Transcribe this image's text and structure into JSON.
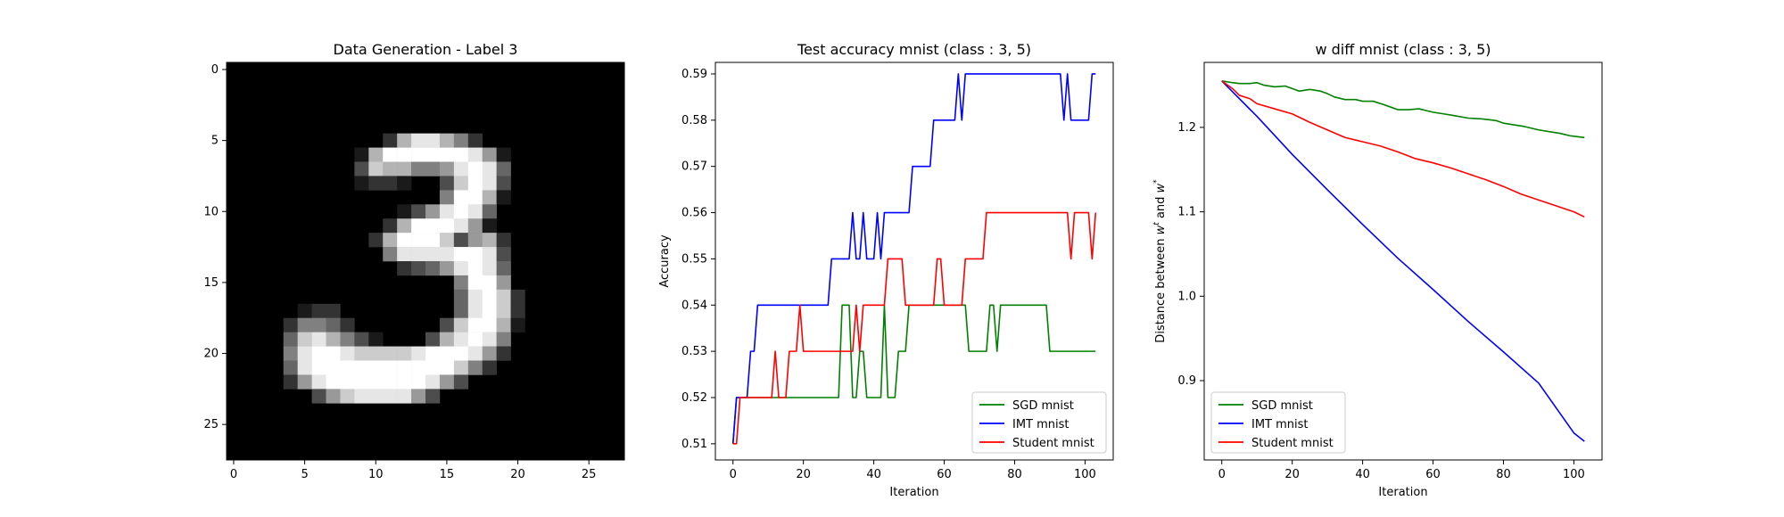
{
  "image_panel": {
    "title": "Data Generation - Label 3",
    "rows": 28,
    "cols": 28,
    "xticks": [
      0,
      5,
      10,
      15,
      20,
      25
    ],
    "yticks": [
      0,
      5,
      10,
      15,
      20,
      25
    ],
    "pixels": [
      "",
      "",
      "",
      "",
      "",
      "11:2,12:7,13:9,14:9,15:7,16:5,17:2",
      "9:1,10:7,11:10,12:10,13:10,14:10,15:10,16:10,17:9,18:6,19:1",
      "9:3,10:8,11:7,12:7,13:5,14:5,15:6,16:9,17:10,18:9,19:4",
      "9:1,10:2,11:2,12:1,15:3,16:8,17:10,18:9,19:3",
      "15:5,16:10,17:10,18:7,19:1",
      "12:1,13:3,14:6,15:9,16:10,17:9,18:4",
      "11:2,12:7,13:10,14:10,15:10,16:9,17:6,18:1",
      "10:2,11:7,12:10,13:10,14:10,15:8,16:3,17:6,18:7,19:2",
      "11:5,12:9,13:9,14:9,15:9,16:10,17:10,18:9,19:3",
      "12:2,13:3,14:4,15:6,16:9,17:10,18:9,19:4",
      "16:5,17:10,18:10,19:6",
      "16:4,17:9,18:10,19:8,20:2",
      "5:1,6:2,7:2,16:4,17:9,18:10,19:8,20:2",
      "4:2,5:5,6:5,7:4,8:2,15:3,16:8,17:10,18:10,19:7,20:1",
      "4:4,5:8,6:9,7:7,8:5,9:3,10:1,14:3,15:7,16:9,17:10,18:9,19:5",
      "4:5,5:9,6:10,7:10,8:9,9:8,10:8,11:8,12:8,13:9,14:10,15:10,16:10,17:9,18:6,19:2",
      "4:4,5:9,6:10,7:10,8:10,9:10,10:10,11:10,12:10,13:10,14:10,15:10,16:8,17:5,18:2",
      "4:2,5:6,6:9,7:10,8:10,9:10,10:10,11:10,12:10,13:10,14:9,15:6,16:3",
      "6:3,7:6,8:8,9:9,10:9,11:9,12:9,13:6,14:3",
      "",
      "",
      "",
      ""
    ]
  },
  "chart_data": [
    {
      "type": "line",
      "title": "Test accuracy mnist (class : 3, 5)",
      "xlabel": "Iteration",
      "ylabel": "Accuracy",
      "xlim": [
        -5,
        108
      ],
      "ylim": [
        0.5065,
        0.5925
      ],
      "xticks": [
        0,
        20,
        40,
        60,
        80,
        100
      ],
      "yticks": [
        0.51,
        0.52,
        0.53,
        0.54,
        0.55,
        0.56,
        0.57,
        0.58,
        0.59
      ],
      "ytick_labels": [
        "0.51",
        "0.52",
        "0.53",
        "0.54",
        "0.55",
        "0.56",
        "0.57",
        "0.58",
        "0.59"
      ],
      "legend_position": "lower-right",
      "series": [
        {
          "name": "SGD mnist",
          "color": "#008000",
          "points": [
            [
              0,
              0.51
            ],
            [
              1,
              0.52
            ],
            [
              30,
              0.52
            ],
            [
              31,
              0.54
            ],
            [
              33,
              0.54
            ],
            [
              34,
              0.52
            ],
            [
              35,
              0.52
            ],
            [
              36,
              0.53
            ],
            [
              37,
              0.53
            ],
            [
              38,
              0.52
            ],
            [
              42,
              0.52
            ],
            [
              43,
              0.54
            ],
            [
              44,
              0.52
            ],
            [
              46,
              0.52
            ],
            [
              47,
              0.53
            ],
            [
              49,
              0.53
            ],
            [
              50,
              0.54
            ],
            [
              52,
              0.54
            ],
            [
              53,
              0.54
            ],
            [
              66,
              0.54
            ],
            [
              67,
              0.53
            ],
            [
              72,
              0.53
            ],
            [
              73,
              0.54
            ],
            [
              74,
              0.54
            ],
            [
              75,
              0.53
            ],
            [
              76,
              0.54
            ],
            [
              89,
              0.54
            ],
            [
              90,
              0.53
            ],
            [
              103,
              0.53
            ]
          ]
        },
        {
          "name": "IMT mnist",
          "color": "#0000ff",
          "points": [
            [
              0,
              0.51
            ],
            [
              1,
              0.52
            ],
            [
              4,
              0.52
            ],
            [
              5,
              0.53
            ],
            [
              6,
              0.53
            ],
            [
              7,
              0.54
            ],
            [
              27,
              0.54
            ],
            [
              28,
              0.55
            ],
            [
              33,
              0.55
            ],
            [
              34,
              0.56
            ],
            [
              35,
              0.55
            ],
            [
              36,
              0.55
            ],
            [
              37,
              0.56
            ],
            [
              38,
              0.55
            ],
            [
              40,
              0.55
            ],
            [
              41,
              0.56
            ],
            [
              42,
              0.55
            ],
            [
              43,
              0.56
            ],
            [
              50,
              0.56
            ],
            [
              51,
              0.57
            ],
            [
              56,
              0.57
            ],
            [
              57,
              0.58
            ],
            [
              63,
              0.58
            ],
            [
              64,
              0.59
            ],
            [
              65,
              0.58
            ],
            [
              66,
              0.59
            ],
            [
              93,
              0.59
            ],
            [
              94,
              0.58
            ],
            [
              95,
              0.59
            ],
            [
              96,
              0.58
            ],
            [
              101,
              0.58
            ],
            [
              102,
              0.59
            ],
            [
              103,
              0.59
            ]
          ]
        },
        {
          "name": "Student mnist",
          "color": "#ff0000",
          "points": [
            [
              0,
              0.51
            ],
            [
              1,
              0.51
            ],
            [
              2,
              0.52
            ],
            [
              11,
              0.52
            ],
            [
              12,
              0.53
            ],
            [
              13,
              0.52
            ],
            [
              15,
              0.52
            ],
            [
              16,
              0.53
            ],
            [
              18,
              0.53
            ],
            [
              19,
              0.54
            ],
            [
              20,
              0.53
            ],
            [
              34,
              0.53
            ],
            [
              35,
              0.54
            ],
            [
              36,
              0.53
            ],
            [
              37,
              0.54
            ],
            [
              43,
              0.54
            ],
            [
              44,
              0.55
            ],
            [
              48,
              0.55
            ],
            [
              49,
              0.54
            ],
            [
              57,
              0.54
            ],
            [
              58,
              0.55
            ],
            [
              59,
              0.55
            ],
            [
              60,
              0.54
            ],
            [
              65,
              0.54
            ],
            [
              66,
              0.55
            ],
            [
              71,
              0.55
            ],
            [
              72,
              0.56
            ],
            [
              95,
              0.56
            ],
            [
              96,
              0.55
            ],
            [
              97,
              0.56
            ],
            [
              101,
              0.56
            ],
            [
              102,
              0.55
            ],
            [
              103,
              0.56
            ]
          ]
        }
      ]
    },
    {
      "type": "line",
      "title": "w diff mnist (class : 3, 5)",
      "xlabel": "Iteration",
      "ylabel": "Distance between w^t and w^*",
      "ylabel_parts": {
        "a": "Distance between ",
        "b": "w",
        "c": "t",
        "d": " and ",
        "e": "w",
        "f": "*"
      },
      "xlim": [
        -5,
        108
      ],
      "ylim": [
        0.806,
        1.277
      ],
      "xticks": [
        0,
        20,
        40,
        60,
        80,
        100
      ],
      "yticks": [
        0.9,
        1.0,
        1.1,
        1.2
      ],
      "ytick_labels": [
        "0.9",
        "1.0",
        "1.1",
        "1.2"
      ],
      "legend_position": "lower-left",
      "series": [
        {
          "name": "SGD mnist",
          "color": "#008000",
          "points": [
            [
              0,
              1.255
            ],
            [
              3,
              1.253
            ],
            [
              5,
              1.252
            ],
            [
              8,
              1.252
            ],
            [
              10,
              1.253
            ],
            [
              12,
              1.25
            ],
            [
              15,
              1.248
            ],
            [
              18,
              1.249
            ],
            [
              20,
              1.246
            ],
            [
              22,
              1.243
            ],
            [
              25,
              1.245
            ],
            [
              28,
              1.243
            ],
            [
              30,
              1.24
            ],
            [
              32,
              1.236
            ],
            [
              35,
              1.233
            ],
            [
              38,
              1.233
            ],
            [
              40,
              1.231
            ],
            [
              43,
              1.231
            ],
            [
              46,
              1.227
            ],
            [
              48,
              1.224
            ],
            [
              50,
              1.221
            ],
            [
              53,
              1.221
            ],
            [
              56,
              1.222
            ],
            [
              58,
              1.22
            ],
            [
              60,
              1.218
            ],
            [
              63,
              1.216
            ],
            [
              66,
              1.214
            ],
            [
              70,
              1.211
            ],
            [
              74,
              1.21
            ],
            [
              78,
              1.208
            ],
            [
              80,
              1.205
            ],
            [
              83,
              1.203
            ],
            [
              86,
              1.201
            ],
            [
              90,
              1.197
            ],
            [
              93,
              1.195
            ],
            [
              96,
              1.193
            ],
            [
              99,
              1.19
            ],
            [
              101,
              1.189
            ],
            [
              103,
              1.188
            ]
          ]
        },
        {
          "name": "IMT mnist",
          "color": "#0000ff",
          "points": [
            [
              0,
              1.255
            ],
            [
              10,
              1.213
            ],
            [
              20,
              1.168
            ],
            [
              30,
              1.126
            ],
            [
              40,
              1.085
            ],
            [
              50,
              1.045
            ],
            [
              60,
              1.008
            ],
            [
              70,
              0.97
            ],
            [
              80,
              0.934
            ],
            [
              90,
              0.897
            ],
            [
              100,
              0.838
            ],
            [
              103,
              0.828
            ]
          ]
        },
        {
          "name": "Student mnist",
          "color": "#ff0000",
          "points": [
            [
              0,
              1.255
            ],
            [
              3,
              1.246
            ],
            [
              5,
              1.238
            ],
            [
              8,
              1.234
            ],
            [
              10,
              1.228
            ],
            [
              15,
              1.222
            ],
            [
              20,
              1.216
            ],
            [
              25,
              1.206
            ],
            [
              30,
              1.197
            ],
            [
              35,
              1.188
            ],
            [
              40,
              1.183
            ],
            [
              45,
              1.178
            ],
            [
              50,
              1.171
            ],
            [
              55,
              1.163
            ],
            [
              60,
              1.158
            ],
            [
              65,
              1.152
            ],
            [
              70,
              1.145
            ],
            [
              75,
              1.138
            ],
            [
              80,
              1.13
            ],
            [
              85,
              1.121
            ],
            [
              90,
              1.114
            ],
            [
              95,
              1.107
            ],
            [
              100,
              1.1
            ],
            [
              103,
              1.094
            ]
          ]
        }
      ]
    }
  ]
}
